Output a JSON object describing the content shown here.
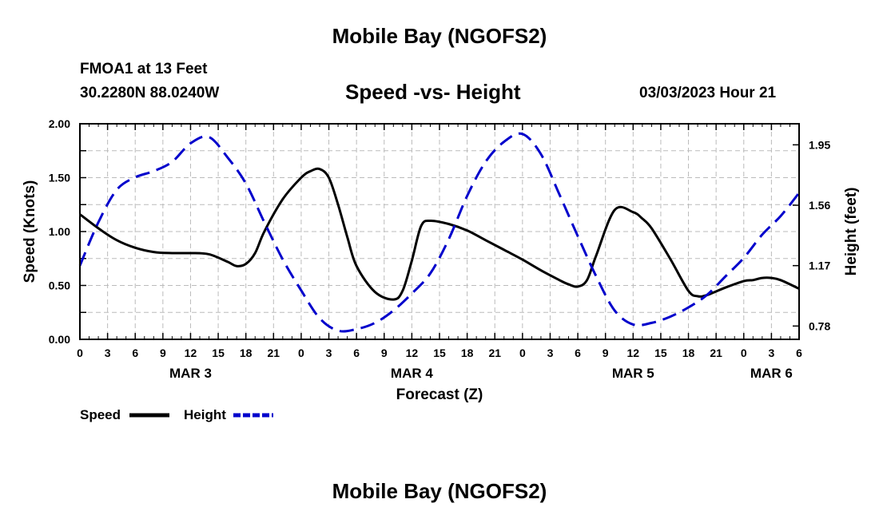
{
  "header": {
    "title": "Mobile Bay (NGOFS2)",
    "station": "FMOA1 at 13 Feet",
    "coords": "30.2280N  88.0240W",
    "subtitle": "Speed -vs- Height",
    "datetime": "03/03/2023 Hour 21",
    "footer_title": "Mobile Bay (NGOFS2)"
  },
  "colors": {
    "speed": "#000000",
    "height": "#0000cc",
    "grid": "#bbbbbb"
  },
  "chart_data": {
    "type": "line",
    "xlabel": "Forecast (Z)",
    "ylabel": "Speed (Knots)",
    "y2label": "Height (feet)",
    "xlim": [
      0,
      78
    ],
    "ylim": [
      0,
      2.0
    ],
    "y2lim": [
      0.694,
      2.086
    ],
    "x_ticks": [
      0,
      3,
      6,
      9,
      12,
      15,
      18,
      21,
      24,
      27,
      30,
      33,
      36,
      39,
      42,
      45,
      48,
      51,
      54,
      57,
      60,
      63,
      66,
      69,
      72,
      75,
      78
    ],
    "x_tick_labels": [
      "0",
      "3",
      "6",
      "9",
      "12",
      "15",
      "18",
      "21",
      "0",
      "3",
      "6",
      "9",
      "12",
      "15",
      "18",
      "21",
      "0",
      "3",
      "6",
      "9",
      "12",
      "15",
      "18",
      "21",
      "0",
      "3",
      "6"
    ],
    "date_labels": [
      {
        "x": 12,
        "label": "MAR 3"
      },
      {
        "x": 36,
        "label": "MAR 4"
      },
      {
        "x": 60,
        "label": "MAR 5"
      },
      {
        "x": 75,
        "label": "MAR 6"
      }
    ],
    "y_ticks": [
      0,
      0.5,
      1.0,
      1.5,
      2.0
    ],
    "y_tick_labels": [
      "0.00",
      "0.50",
      "1.00",
      "1.50",
      "2.00"
    ],
    "y2_ticks": [
      0.78,
      1.17,
      1.56,
      1.95
    ],
    "y2_tick_labels": [
      "0.78",
      "1.17",
      "1.56",
      "1.95"
    ],
    "legend": [
      {
        "name": "Speed",
        "style": "solid"
      },
      {
        "name": "Height",
        "style": "dashed"
      }
    ],
    "series": [
      {
        "name": "Speed",
        "axis": "left",
        "x": [
          0,
          2,
          4,
          6,
          8,
          10,
          12,
          14,
          16,
          17,
          18,
          19,
          20,
          22,
          24,
          25,
          26,
          27,
          28,
          29,
          30,
          32,
          34,
          35,
          36,
          37,
          38,
          40,
          42,
          44,
          46,
          48,
          50,
          52,
          53,
          54,
          55,
          56,
          58,
          60,
          61,
          62,
          64,
          66,
          67,
          68,
          70,
          72,
          73,
          74,
          75,
          76,
          78
        ],
        "y": [
          1.16,
          1.03,
          0.92,
          0.85,
          0.81,
          0.8,
          0.8,
          0.79,
          0.72,
          0.68,
          0.7,
          0.8,
          1.0,
          1.3,
          1.5,
          1.56,
          1.58,
          1.5,
          1.25,
          0.95,
          0.68,
          0.44,
          0.37,
          0.45,
          0.73,
          1.05,
          1.1,
          1.07,
          1.01,
          0.92,
          0.83,
          0.74,
          0.64,
          0.55,
          0.51,
          0.49,
          0.55,
          0.78,
          1.2,
          1.18,
          1.12,
          1.03,
          0.75,
          0.45,
          0.4,
          0.41,
          0.48,
          0.54,
          0.55,
          0.57,
          0.57,
          0.55,
          0.47
        ]
      },
      {
        "name": "Height",
        "axis": "right",
        "x": [
          0,
          2,
          4,
          6,
          8,
          10,
          12,
          14,
          16,
          18,
          20,
          22,
          24,
          26,
          28,
          30,
          32,
          34,
          36,
          38,
          40,
          42,
          44,
          46,
          48,
          50,
          52,
          54,
          56,
          58,
          60,
          62,
          64,
          66,
          68,
          70,
          72,
          74,
          76,
          78
        ],
        "y": [
          1.17,
          1.45,
          1.66,
          1.74,
          1.78,
          1.84,
          1.96,
          2.0,
          1.87,
          1.7,
          1.45,
          1.21,
          1.01,
          0.83,
          0.75,
          0.76,
          0.8,
          0.88,
          0.99,
          1.12,
          1.34,
          1.62,
          1.84,
          1.97,
          2.02,
          1.89,
          1.63,
          1.36,
          1.1,
          0.88,
          0.79,
          0.8,
          0.84,
          0.9,
          0.98,
          1.1,
          1.22,
          1.37,
          1.49,
          1.64
        ]
      }
    ]
  }
}
